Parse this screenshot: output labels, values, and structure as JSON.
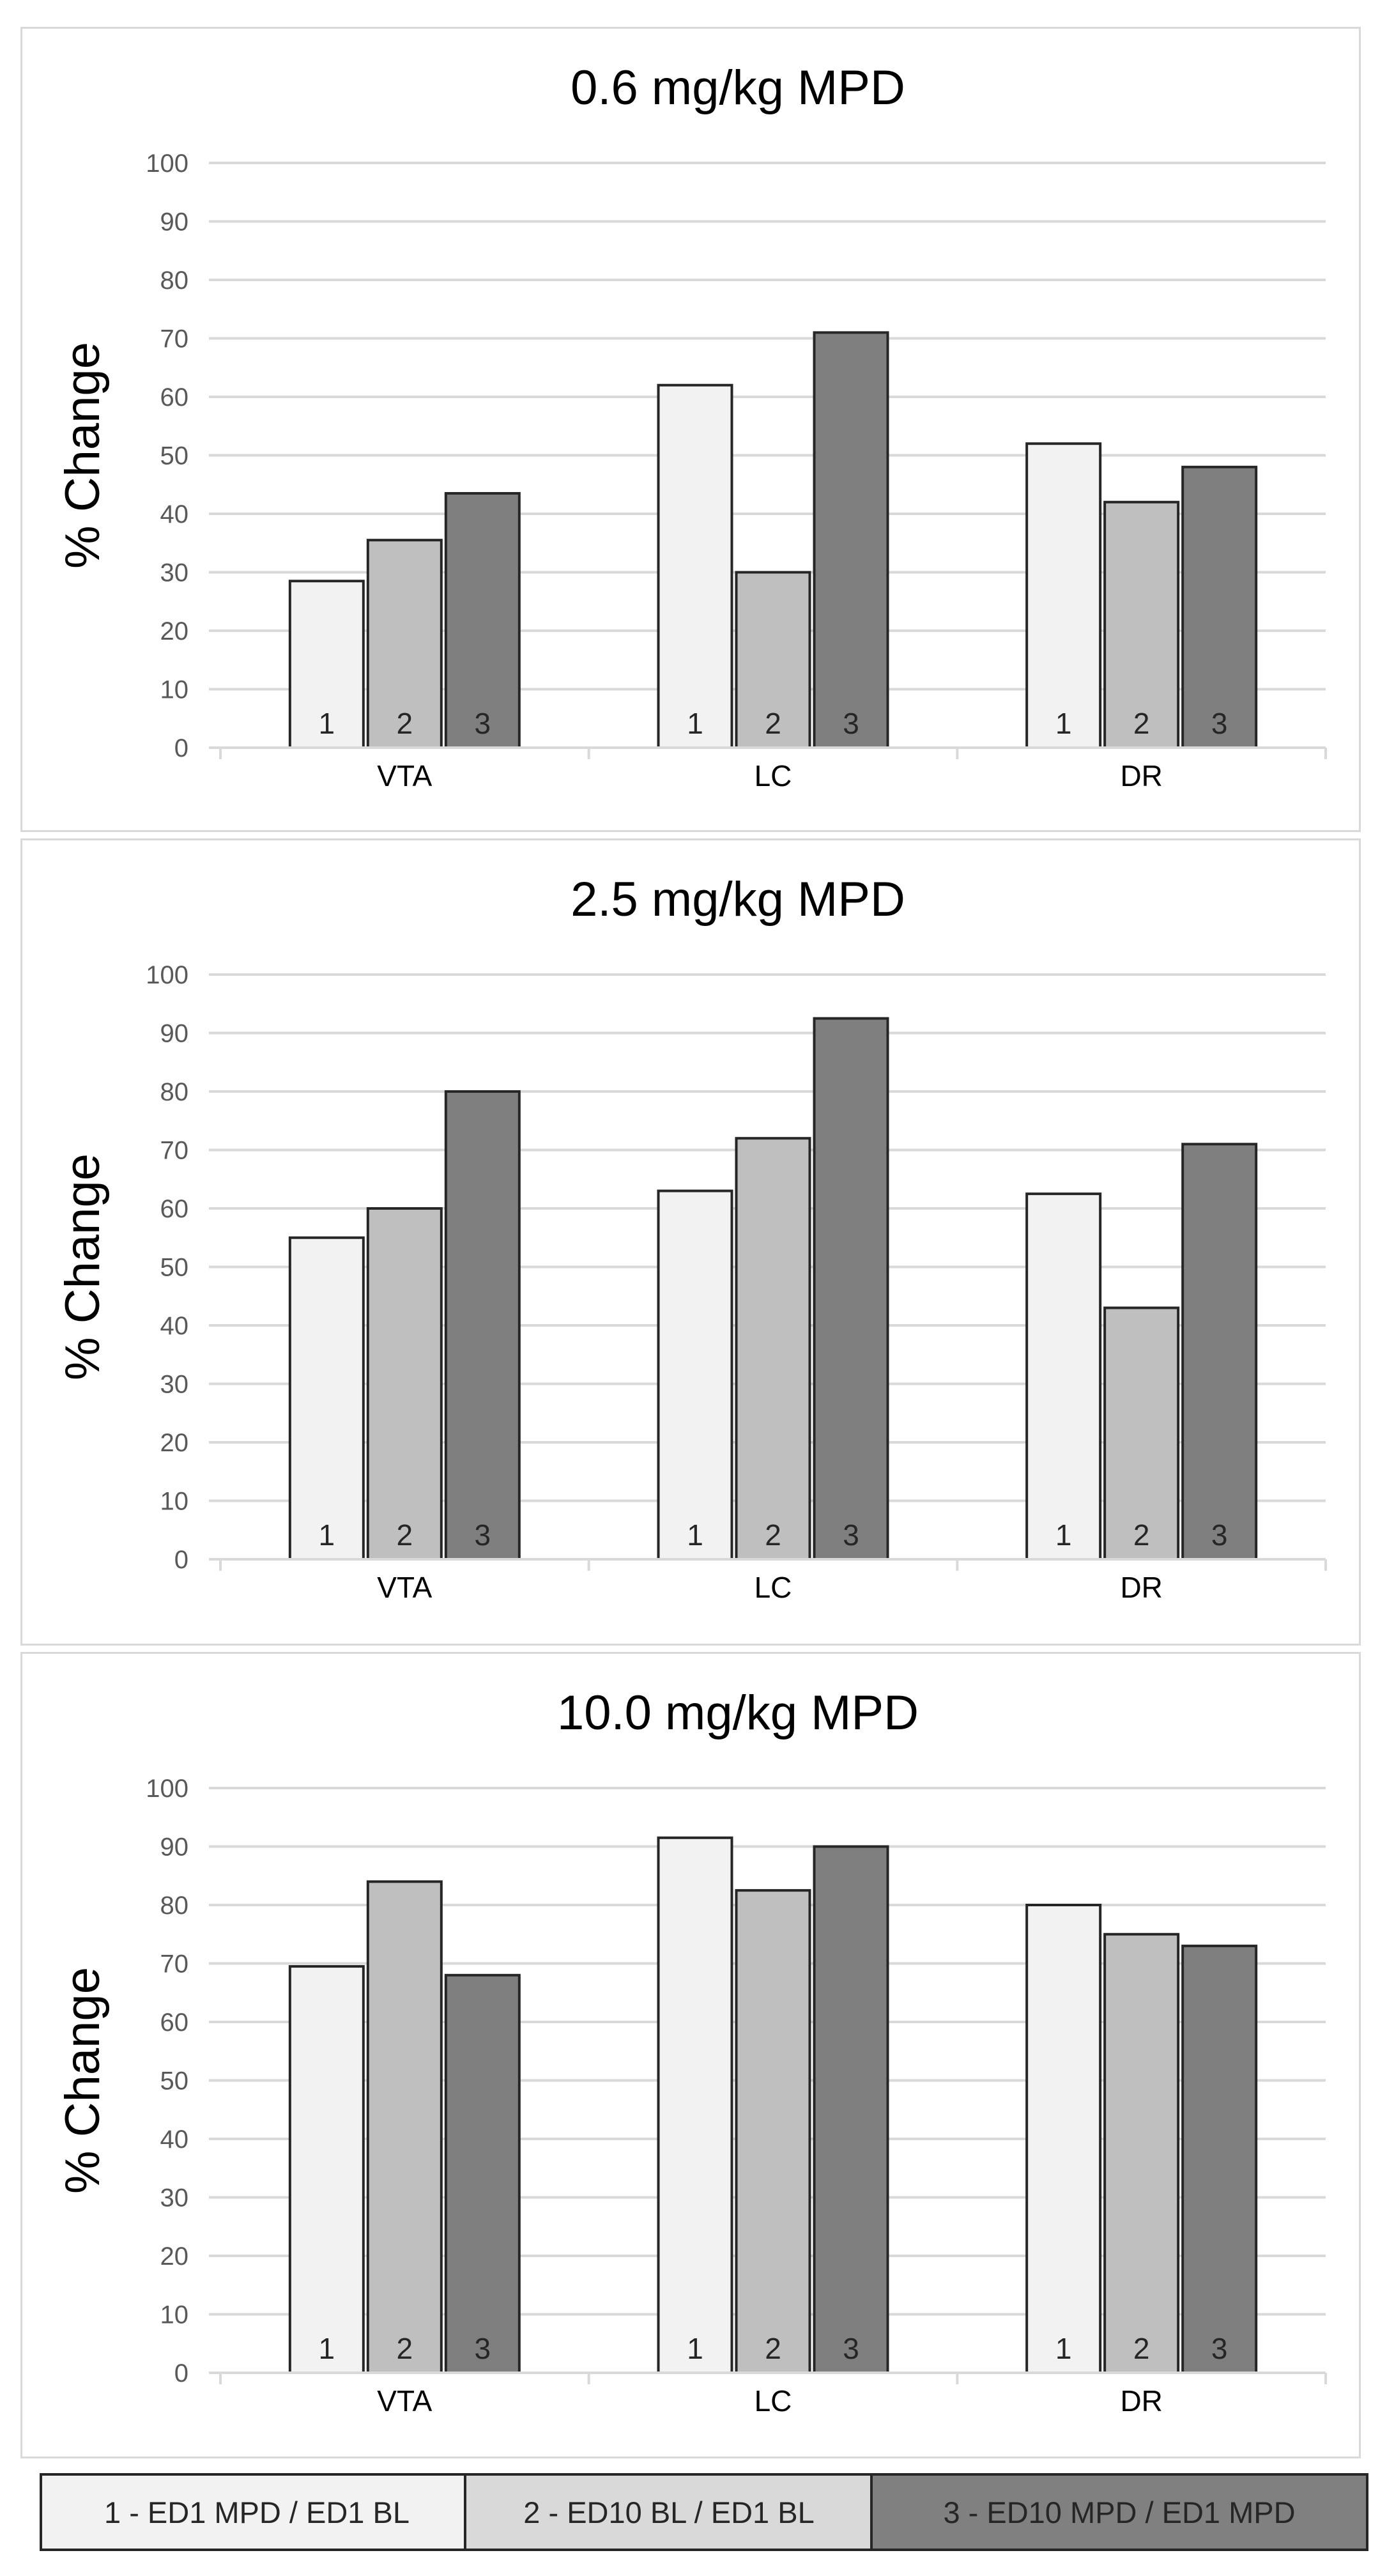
{
  "colors": {
    "series1": "#f2f2f2",
    "series2": "#bfbfbf",
    "series3": "#7f7f7f",
    "grid": "#d9d9d9",
    "text": "#595959",
    "border": "#262626"
  },
  "legend": [
    {
      "label": "1 - ED1 MPD / ED1 BL"
    },
    {
      "label": "2 - ED10 BL / ED1 BL"
    },
    {
      "label": "3 - ED10 MPD / ED1 MPD"
    }
  ],
  "chart_data": [
    {
      "type": "bar",
      "title": "0.6 mg/kg MPD",
      "ylabel": "% Change",
      "xlabel": "",
      "ylim": [
        0,
        100
      ],
      "yticks": [
        "0",
        "10",
        "20",
        "30",
        "40",
        "50",
        "60",
        "70",
        "80",
        "90",
        "100"
      ],
      "categories": [
        "VTA",
        "LC",
        "DR"
      ],
      "bar_labels": [
        "1",
        "2",
        "3"
      ],
      "series": [
        {
          "name": "1 - ED1 MPD / ED1 BL",
          "values": [
            28.5,
            62,
            52
          ]
        },
        {
          "name": "2 - ED10 BL / ED1 BL",
          "values": [
            35.5,
            30,
            42
          ]
        },
        {
          "name": "3 - ED10 MPD / ED1 MPD",
          "values": [
            43.5,
            71,
            48
          ]
        }
      ]
    },
    {
      "type": "bar",
      "title": "2.5 mg/kg MPD",
      "ylabel": "% Change",
      "xlabel": "",
      "ylim": [
        0,
        100
      ],
      "yticks": [
        "0",
        "10",
        "20",
        "30",
        "40",
        "50",
        "60",
        "70",
        "80",
        "90",
        "100"
      ],
      "categories": [
        "VTA",
        "LC",
        "DR"
      ],
      "bar_labels": [
        "1",
        "2",
        "3"
      ],
      "series": [
        {
          "name": "1 - ED1 MPD / ED1 BL",
          "values": [
            55,
            63,
            62.5
          ]
        },
        {
          "name": "2 - ED10 BL / ED1 BL",
          "values": [
            60,
            72,
            43
          ]
        },
        {
          "name": "3 - ED10 MPD / ED1 MPD",
          "values": [
            80,
            92.5,
            71
          ]
        }
      ]
    },
    {
      "type": "bar",
      "title": "10.0 mg/kg MPD",
      "ylabel": "% Change",
      "xlabel": "",
      "ylim": [
        0,
        100
      ],
      "yticks": [
        "0",
        "10",
        "20",
        "30",
        "40",
        "50",
        "60",
        "70",
        "80",
        "90",
        "100"
      ],
      "categories": [
        "VTA",
        "LC",
        "DR"
      ],
      "bar_labels": [
        "1",
        "2",
        "3"
      ],
      "series": [
        {
          "name": "1 - ED1 MPD / ED1 BL",
          "values": [
            69.5,
            91.5,
            80
          ]
        },
        {
          "name": "2 - ED10 BL / ED1 BL",
          "values": [
            84,
            82.5,
            75
          ]
        },
        {
          "name": "3 - ED10 MPD / ED1 MPD",
          "values": [
            68,
            90,
            73
          ]
        }
      ]
    }
  ]
}
